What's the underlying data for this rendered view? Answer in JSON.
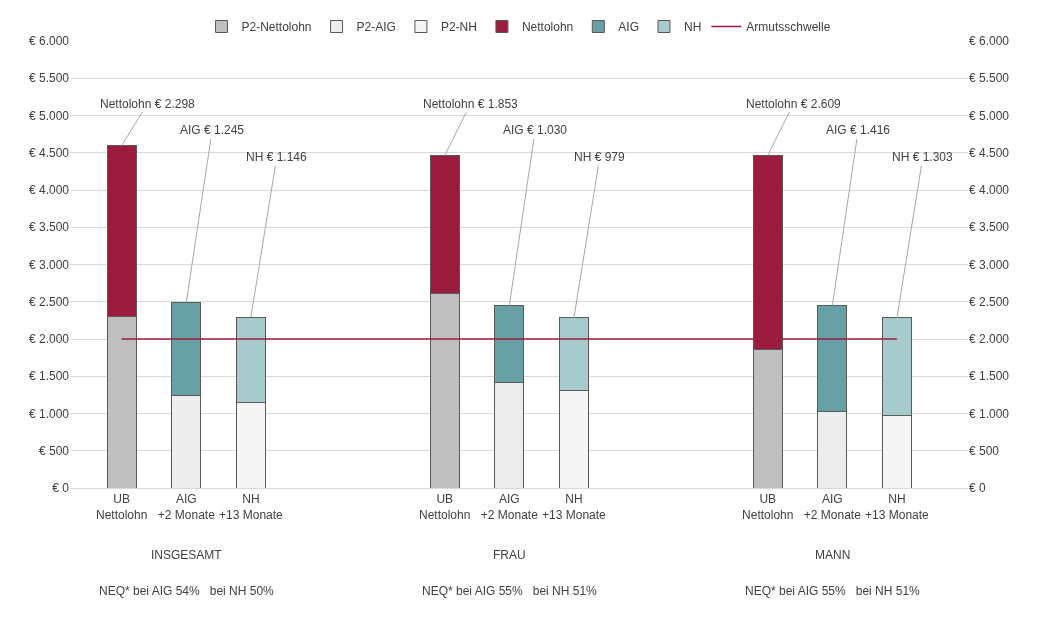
{
  "chart_data": {
    "type": "bar",
    "stacked": true,
    "categories": [
      "UB Nettolohn",
      "AIG +2 Monate",
      "NH +13 Monate",
      null,
      null,
      "UB Nettolohn",
      "AIG +2 Monate",
      "NH +13 Monate",
      null,
      null,
      "UB Nettolohn",
      "AIG +2 Monate",
      "NH +13 Monate"
    ],
    "series": [
      {
        "name": "P2-Nettolohn",
        "color": "#bfbfbf",
        "values": [
          2298,
          null,
          null,
          null,
          null,
          2609,
          null,
          null,
          null,
          null,
          1853,
          null,
          null
        ]
      },
      {
        "name": "P2-AIG",
        "color": "#ededed",
        "values": [
          null,
          1245,
          null,
          null,
          null,
          null,
          1416,
          null,
          null,
          null,
          null,
          1030,
          null
        ]
      },
      {
        "name": "P2-NH",
        "color": "#f5f5f5",
        "values": [
          null,
          null,
          1146,
          null,
          null,
          null,
          null,
          1303,
          null,
          null,
          null,
          null,
          979
        ]
      },
      {
        "name": "Nettolohn",
        "color": "#9b1c3e",
        "values": [
          2298,
          null,
          null,
          null,
          null,
          1853,
          null,
          null,
          null,
          null,
          2609,
          null,
          null
        ],
        "value_labels": [
          "Nettolohn € 2.298",
          null,
          null,
          null,
          null,
          "Nettolohn € 1.853",
          null,
          null,
          null,
          null,
          "Nettolohn € 2.609",
          null,
          null
        ]
      },
      {
        "name": "AIG",
        "color": "#67a1a5",
        "values": [
          null,
          1245,
          null,
          null,
          null,
          null,
          1030,
          null,
          null,
          null,
          null,
          1416,
          null
        ],
        "value_labels": [
          null,
          "AIG € 1.245",
          null,
          null,
          null,
          null,
          "AIG € 1.030",
          null,
          null,
          null,
          null,
          "AIG € 1.416",
          null
        ]
      },
      {
        "name": "NH",
        "color": "#a7cbcd",
        "values": [
          null,
          null,
          1146,
          null,
          null,
          null,
          null,
          979,
          null,
          null,
          null,
          null,
          1303
        ],
        "value_labels": [
          null,
          null,
          "NH € 1.146",
          null,
          null,
          null,
          null,
          "NH € 979",
          null,
          null,
          null,
          null,
          "NH € 1.303"
        ]
      },
      {
        "name": "Armutsschwelle",
        "type": "line",
        "color": "#9b1c3e",
        "values": [
          2000,
          2000,
          2000,
          null,
          null,
          2000,
          2000,
          2000,
          null,
          null,
          2000,
          2000,
          2000
        ]
      }
    ],
    "ylim": [
      0,
      6000
    ],
    "yticks": [
      {
        "value": 0,
        "label": "€ 0"
      },
      {
        "value": 500,
        "label": "€ 500"
      },
      {
        "value": 1000,
        "label": "€ 1.000"
      },
      {
        "value": 1500,
        "label": "€ 1.500"
      },
      {
        "value": 2000,
        "label": "€ 2.000"
      },
      {
        "value": 2500,
        "label": "€ 2.500"
      },
      {
        "value": 3000,
        "label": "€ 3.000"
      },
      {
        "value": 3500,
        "label": "€ 3.500"
      },
      {
        "value": 4000,
        "label": "€ 4.000"
      },
      {
        "value": 4500,
        "label": "€ 4.500"
      },
      {
        "value": 5000,
        "label": "€ 5.000"
      },
      {
        "value": 5500,
        "label": "€ 5.500"
      },
      {
        "value": 6000,
        "label": "€ 6.000"
      }
    ],
    "y2lim": [
      0,
      6000
    ],
    "y2ticks": [
      {
        "value": 0,
        "label": "€ 0"
      },
      {
        "value": 500,
        "label": "€ 500"
      },
      {
        "value": 1000,
        "label": "€ 1.000"
      },
      {
        "value": 1500,
        "label": "€ 1.500"
      },
      {
        "value": 2000,
        "label": "€ 2.000"
      },
      {
        "value": 2500,
        "label": "€ 2.500"
      },
      {
        "value": 3000,
        "label": "€ 3.000"
      },
      {
        "value": 3500,
        "label": "€ 3.500"
      },
      {
        "value": 4000,
        "label": "€ 4.000"
      },
      {
        "value": 4500,
        "label": "€ 4.500"
      },
      {
        "value": 5000,
        "label": "€ 5.000"
      },
      {
        "value": 5500,
        "label": "€ 5.500"
      },
      {
        "value": 6000,
        "label": "€ 6.000"
      }
    ],
    "grid": "y",
    "legend": "top",
    "annotations": [
      "INSGESAMT",
      "FRAU",
      "MANN",
      "NEQ* bei AIG 54%   bei NH 50%",
      "NEQ* bei AIG 55%   bei NH 51%",
      "NEQ* bei AIG 55%   bei NH 51%"
    ]
  }
}
